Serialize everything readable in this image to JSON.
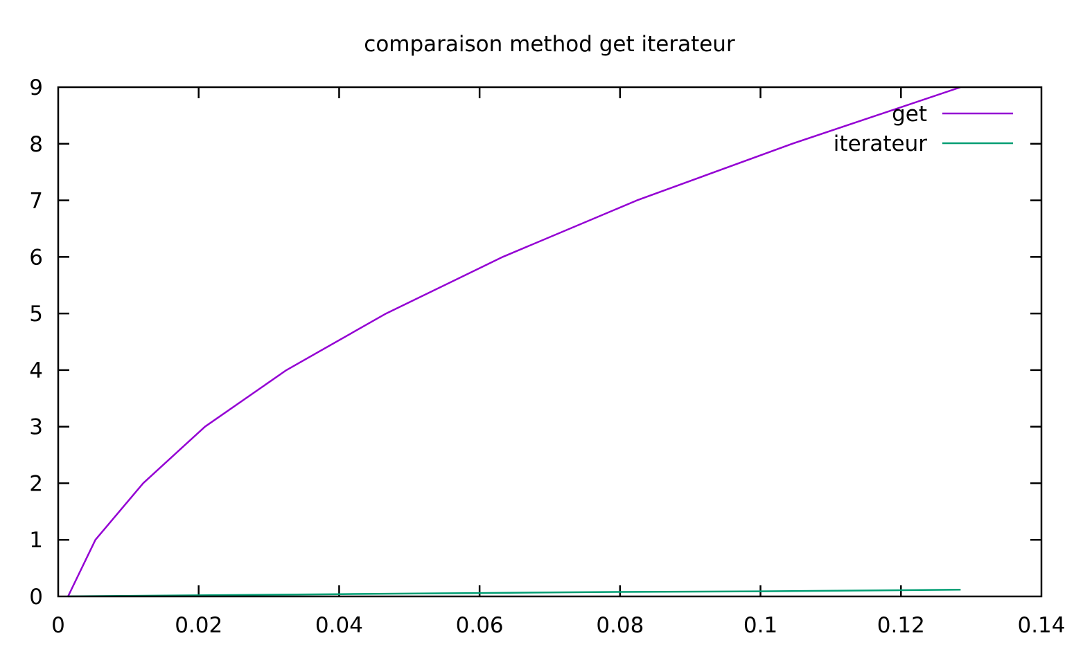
{
  "chart_data": {
    "type": "line",
    "title": "comparaison method get  iterateur",
    "xlabel": "",
    "ylabel": "",
    "xlim": [
      0,
      0.14
    ],
    "ylim": [
      0,
      9
    ],
    "x_ticks": [
      0,
      0.02,
      0.04,
      0.06,
      0.08,
      0.1,
      0.12,
      0.14
    ],
    "x_tick_labels": [
      "0",
      "0.02",
      "0.04",
      "0.06",
      "0.08",
      "0.1",
      "0.12",
      "0.14"
    ],
    "y_ticks": [
      0,
      1,
      2,
      3,
      4,
      5,
      6,
      7,
      8,
      9
    ],
    "y_tick_labels": [
      "0",
      "1",
      "2",
      "3",
      "4",
      "5",
      "6",
      "7",
      "8",
      "9"
    ],
    "grid": false,
    "legend_position": "top-right",
    "series": [
      {
        "name": "get",
        "color": "#9400d3",
        "points": [
          [
            0.0014,
            0
          ],
          [
            0.0053,
            1
          ],
          [
            0.0121,
            2
          ],
          [
            0.0209,
            3
          ],
          [
            0.0325,
            4
          ],
          [
            0.0467,
            5
          ],
          [
            0.0633,
            6
          ],
          [
            0.0824,
            7
          ],
          [
            0.1045,
            8
          ],
          [
            0.1285,
            9
          ]
        ]
      },
      {
        "name": "iterateur",
        "color": "#009e73",
        "points": [
          [
            0.0014,
            0.001
          ],
          [
            0.02,
            0.02
          ],
          [
            0.04,
            0.04
          ],
          [
            0.06,
            0.06
          ],
          [
            0.08,
            0.08
          ],
          [
            0.1,
            0.09
          ],
          [
            0.12,
            0.11
          ],
          [
            0.1285,
            0.12
          ]
        ]
      }
    ]
  }
}
